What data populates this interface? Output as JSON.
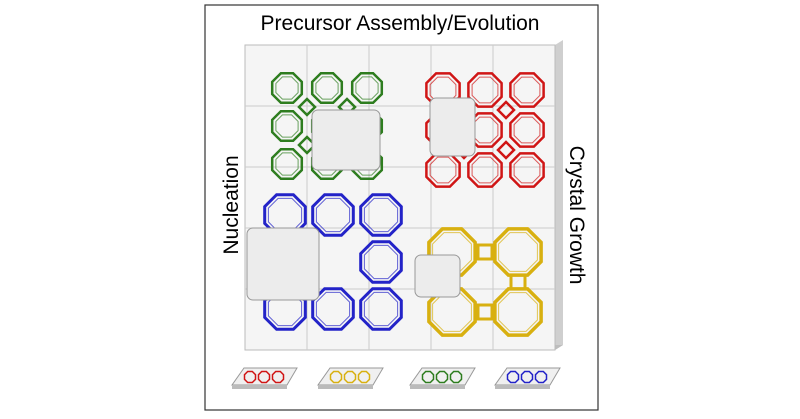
{
  "title": "Precursor Assembly/Evolution",
  "left_label": "Nucleation",
  "right_label": "Crystal Growth"
}
